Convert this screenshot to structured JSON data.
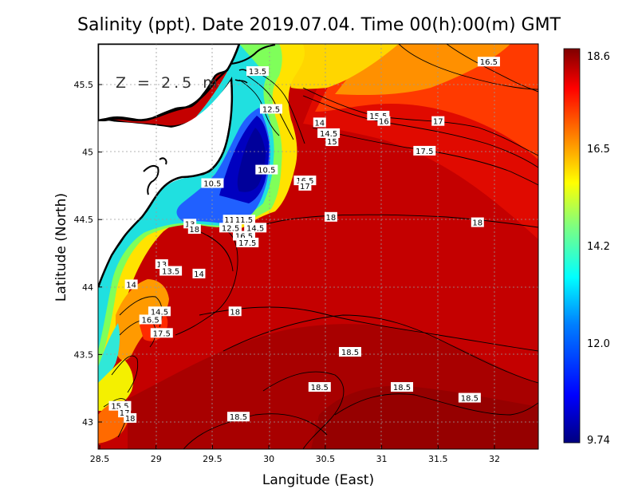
{
  "chart_data": {
    "type": "heatmap",
    "title": "Salinity (ppt). Date 2019.07.04. Time 00(h):00(m) GMT",
    "xlabel": "Langitude (East)",
    "ylabel": "Latitude (North)",
    "xlim": [
      28.5,
      32.4
    ],
    "ylim": [
      42.8,
      45.8
    ],
    "x_ticks": [
      28.5,
      29,
      29.5,
      30,
      30.5,
      31,
      31.5,
      32
    ],
    "y_ticks": [
      43,
      43.5,
      44,
      44.5,
      45,
      45.5
    ],
    "grid": true,
    "annotation": "Z = 2.5 m",
    "colorbar": {
      "min": 9.74,
      "max": 18.6,
      "ticks": [
        18.6,
        16.5,
        14.2,
        12.0,
        9.74
      ],
      "tick_labels": [
        "18.6",
        "16.5",
        "14.2",
        "12.0",
        "9.74"
      ],
      "colors": [
        "#00007f",
        "#0000ff",
        "#007fff",
        "#00ffff",
        "#7fff7f",
        "#ffff00",
        "#ff7f00",
        "#ff0000",
        "#7f0000"
      ]
    },
    "contour_labels": [
      {
        "text": "13.5",
        "lon": 29.9,
        "lat": 45.6
      },
      {
        "text": "16.5",
        "lon": 31.95,
        "lat": 45.67
      },
      {
        "text": "12.5",
        "lon": 30.02,
        "lat": 45.32
      },
      {
        "text": "14",
        "lon": 30.45,
        "lat": 45.22
      },
      {
        "text": "15.5",
        "lon": 30.97,
        "lat": 45.27
      },
      {
        "text": "16",
        "lon": 31.02,
        "lat": 45.23
      },
      {
        "text": "17",
        "lon": 31.5,
        "lat": 45.23
      },
      {
        "text": "14.5",
        "lon": 30.53,
        "lat": 45.14
      },
      {
        "text": "15",
        "lon": 30.56,
        "lat": 45.08
      },
      {
        "text": "17.5",
        "lon": 31.38,
        "lat": 45.01
      },
      {
        "text": "10.5",
        "lon": 29.98,
        "lat": 44.87
      },
      {
        "text": "10.5",
        "lon": 29.5,
        "lat": 44.77
      },
      {
        "text": "16.5",
        "lon": 30.32,
        "lat": 44.79
      },
      {
        "text": "17",
        "lon": 30.32,
        "lat": 44.75
      },
      {
        "text": "11",
        "lon": 29.65,
        "lat": 44.5
      },
      {
        "text": "11.5",
        "lon": 29.78,
        "lat": 44.5
      },
      {
        "text": "12.5",
        "lon": 29.66,
        "lat": 44.44
      },
      {
        "text": "14.5",
        "lon": 29.88,
        "lat": 44.44
      },
      {
        "text": "16.5",
        "lon": 29.78,
        "lat": 44.38
      },
      {
        "text": "17.5",
        "lon": 29.81,
        "lat": 44.33
      },
      {
        "text": "13",
        "lon": 29.3,
        "lat": 44.47
      },
      {
        "text": "18",
        "lon": 29.34,
        "lat": 44.43
      },
      {
        "text": "18",
        "lon": 30.55,
        "lat": 44.52
      },
      {
        "text": "18",
        "lon": 31.85,
        "lat": 44.48
      },
      {
        "text": "13",
        "lon": 29.05,
        "lat": 44.17
      },
      {
        "text": "13.5",
        "lon": 29.13,
        "lat": 44.12
      },
      {
        "text": "14",
        "lon": 29.38,
        "lat": 44.1
      },
      {
        "text": "14",
        "lon": 28.78,
        "lat": 44.02
      },
      {
        "text": "14.5",
        "lon": 29.03,
        "lat": 43.82
      },
      {
        "text": "16.5",
        "lon": 28.95,
        "lat": 43.76
      },
      {
        "text": "17.5",
        "lon": 29.05,
        "lat": 43.66
      },
      {
        "text": "18",
        "lon": 29.7,
        "lat": 43.82
      },
      {
        "text": "18.5",
        "lon": 30.72,
        "lat": 43.52
      },
      {
        "text": "18.5",
        "lon": 30.45,
        "lat": 43.26
      },
      {
        "text": "18.5",
        "lon": 31.18,
        "lat": 43.26
      },
      {
        "text": "18.5",
        "lon": 31.78,
        "lat": 43.18
      },
      {
        "text": "18.5",
        "lon": 29.73,
        "lat": 43.04
      },
      {
        "text": "15.5",
        "lon": 28.68,
        "lat": 43.12
      },
      {
        "text": "17",
        "lon": 28.72,
        "lat": 43.07
      },
      {
        "text": "18",
        "lon": 28.77,
        "lat": 43.03
      }
    ]
  }
}
